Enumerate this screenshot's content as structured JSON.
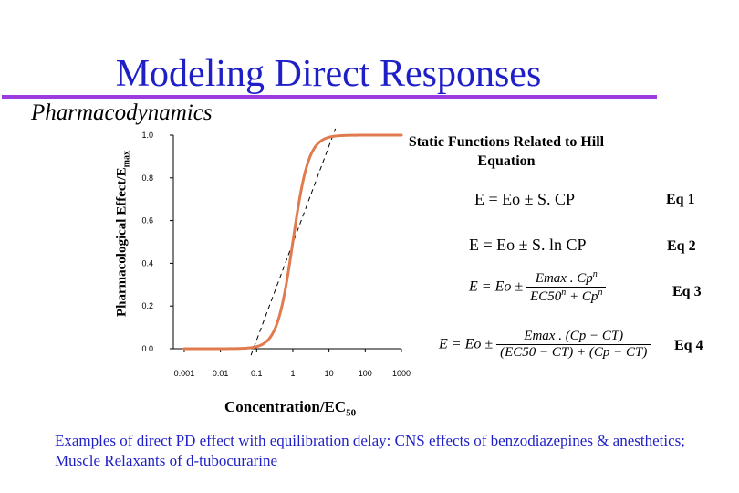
{
  "slide": {
    "title": "Modeling Direct Responses",
    "subtitle": "Pharmacodynamics",
    "caption": "Examples of direct PD effect with equilibration delay: CNS effects of benzodiazepines & anesthetics; Muscle Relaxants of d-tubocurarine"
  },
  "chart_labels": {
    "ylabel_main": "Pharmacological Effect/E",
    "ylabel_sub": "max",
    "xlabel_main": "Concentration/EC",
    "xlabel_sub": "50"
  },
  "chart_data": {
    "type": "line",
    "x_scale": "log",
    "x_ticks": [
      "0.001",
      "0.01",
      "0.1",
      "1",
      "10",
      "100",
      "1000"
    ],
    "x_tick_values": [
      0.001,
      0.01,
      0.1,
      1,
      10,
      100,
      1000
    ],
    "y_ticks": [
      "0.0",
      "0.2",
      "0.4",
      "0.6",
      "0.8",
      "1.0"
    ],
    "y_tick_values": [
      0,
      0.2,
      0.4,
      0.6,
      0.8,
      1.0
    ],
    "xlim": [
      0.0005,
      1000
    ],
    "ylim": [
      0,
      1.0
    ],
    "series": [
      {
        "color": "#e07b4f",
        "hill_coefficient": 2,
        "x": [
          0.001,
          0.01,
          0.03,
          0.1,
          0.2,
          0.3,
          0.5,
          0.7,
          1,
          1.5,
          2,
          3,
          5,
          10,
          30,
          100,
          1000
        ],
        "y": [
          0.0,
          0.0001,
          0.0009,
          0.0099,
          0.0385,
          0.0826,
          0.2,
          0.329,
          0.5,
          0.692,
          0.8,
          0.9,
          0.962,
          0.99,
          0.999,
          1.0,
          1.0
        ]
      }
    ],
    "reference_line": {
      "style": "dashed",
      "color": "#000000",
      "x": [
        0.07,
        15
      ],
      "y": [
        -0.03,
        1.03
      ]
    },
    "grid": false,
    "legend": "none"
  },
  "equations": {
    "heading": "Static Functions Related to Hill Equation",
    "eq1": {
      "text": "E = Eo ± S. CP",
      "label": "Eq 1"
    },
    "eq2": {
      "text": "E = Eo ± S. ln CP",
      "label": "Eq 2"
    },
    "eq3": {
      "lhs": "E = Eo ±",
      "numerator": "Emax . Cp",
      "numerator_sup": "n",
      "denominator": "EC50",
      "denominator_sup": "n",
      "denominator_tail": "+ Cp",
      "denominator_tail_sup": "n",
      "label": "Eq 3"
    },
    "eq4": {
      "lhs": "E = Eo ±",
      "numerator": "Emax . (Cp − CT)",
      "denominator": "(EC50 − CT) + (Cp − CT)",
      "label": "Eq 4"
    }
  }
}
